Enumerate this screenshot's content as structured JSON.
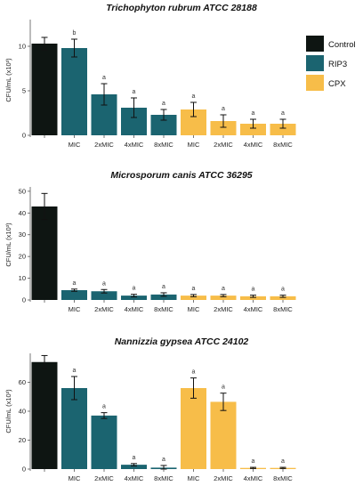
{
  "colors": {
    "Control": "#0e1512",
    "RIP3": "#1b6470",
    "CPX": "#f7bd49"
  },
  "legend": {
    "items": [
      {
        "label": "Control",
        "color": "#0e1512"
      },
      {
        "label": "RIP3",
        "color": "#1b6470"
      },
      {
        "label": "CPX",
        "color": "#f7bd49"
      }
    ]
  },
  "chart_data": [
    {
      "type": "bar",
      "title": "Trichophyton rubrum ATCC 28188",
      "ylabel": "CFU/mL (x10³)",
      "yticks": [
        "0",
        "5",
        "10"
      ],
      "ylim": [
        0,
        13
      ],
      "categories": [
        "",
        "MIC",
        "2xMIC",
        "4xMIC",
        "8xMIC",
        "MIC",
        "2xMIC",
        "4xMIC",
        "8xMIC"
      ],
      "groups": [
        "Control",
        "RIP3",
        "RIP3",
        "RIP3",
        "RIP3",
        "CPX",
        "CPX",
        "CPX",
        "CPX"
      ],
      "values": [
        10.3,
        9.8,
        4.6,
        3.1,
        2.3,
        2.9,
        1.6,
        1.3,
        1.3
      ],
      "errors": [
        0.7,
        1.0,
        1.2,
        1.1,
        0.6,
        0.8,
        0.7,
        0.5,
        0.5
      ],
      "labels": [
        "",
        "b",
        "a",
        "a",
        "a",
        "a",
        "a",
        "a",
        "a"
      ]
    },
    {
      "type": "bar",
      "title": "Microsporum canis ATCC 36295",
      "ylabel": "CFU/mL (x10³)",
      "yticks": [
        "0",
        "10",
        "20",
        "30",
        "40",
        "50"
      ],
      "ylim": [
        0,
        52
      ],
      "categories": [
        "",
        "MIC",
        "2xMIC",
        "4xMIC",
        "8xMIC",
        "MIC",
        "2xMIC",
        "4xMIC",
        "8xMIC"
      ],
      "groups": [
        "Control",
        "RIP3",
        "RIP3",
        "RIP3",
        "RIP3",
        "CPX",
        "CPX",
        "CPX",
        "CPX"
      ],
      "values": [
        43,
        4.5,
        4,
        2,
        2.5,
        2,
        2,
        1.7,
        1.7
      ],
      "errors": [
        6,
        0.5,
        0.8,
        0.6,
        0.8,
        0.5,
        0.5,
        0.5,
        0.5
      ],
      "labels": [
        "",
        "a",
        "a",
        "a",
        "a",
        "a",
        "a",
        "a",
        "a"
      ]
    },
    {
      "type": "bar",
      "title": "Nannizzia gypsea ATCC 24102",
      "ylabel": "CFU/mL (x10³)",
      "yticks": [
        "0",
        "20",
        "40",
        "60"
      ],
      "ylim": [
        0,
        80
      ],
      "categories": [
        "",
        "MIC",
        "2xMIC",
        "4xMIC",
        "8xMIC",
        "MIC",
        "2xMIC",
        "4xMIC",
        "8xMIC"
      ],
      "groups": [
        "Control",
        "RIP3",
        "RIP3",
        "RIP3",
        "RIP3",
        "CPX",
        "CPX",
        "CPX",
        "CPX"
      ],
      "values": [
        74,
        56,
        37,
        3,
        1,
        56,
        46.5,
        0.8,
        0.8
      ],
      "errors": [
        4.5,
        8,
        2,
        0.8,
        1.5,
        7,
        6,
        0.4,
        0.4
      ],
      "labels": [
        "",
        "a",
        "a",
        "a",
        "a",
        "a",
        "a",
        "a",
        "a"
      ]
    }
  ]
}
